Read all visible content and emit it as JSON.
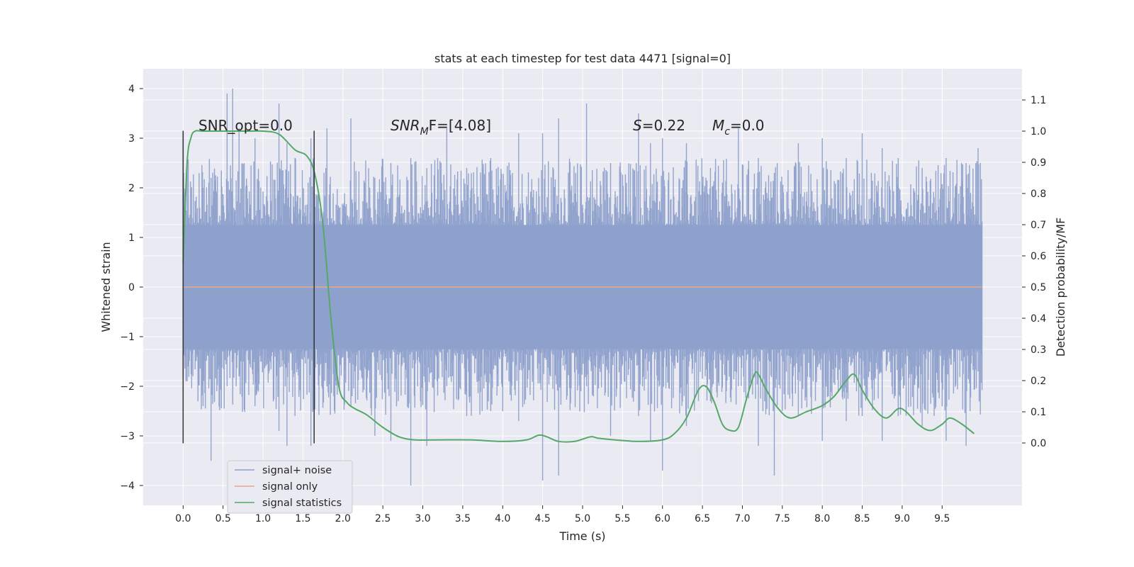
{
  "chart_data": {
    "type": "line",
    "title": "stats at each timestep for test data 4471 [signal=0]",
    "xlabel": "Time (s)",
    "ylabel_left": "Whitened strain",
    "ylabel_right": "Detection probability/MF",
    "xlim": [
      -0.5,
      10.5
    ],
    "ylim_left": [
      -4.4,
      4.4
    ],
    "ylim_right": [
      -0.2,
      1.2
    ],
    "x_ticks": [
      "0.0",
      "0.5",
      "1.0",
      "1.5",
      "2.0",
      "2.5",
      "3.0",
      "3.5",
      "4.0",
      "4.5",
      "5.0",
      "5.5",
      "6.0",
      "6.5",
      "7.0",
      "7.5",
      "8.0",
      "8.5",
      "9.0",
      "9.5"
    ],
    "y_ticks_left": [
      "4",
      "3",
      "2",
      "1",
      "0",
      "−1",
      "−2",
      "−3",
      "−4"
    ],
    "y_ticks_right": [
      "1.1",
      "1.0",
      "0.9",
      "0.8",
      "0.7",
      "0.6",
      "0.5",
      "0.4",
      "0.3",
      "0.2",
      "0.1",
      "0.0"
    ],
    "grid": true,
    "legend_position": "lower-left",
    "colors": {
      "background": "#eaeaf2",
      "noise": "#8da0cb",
      "signal_only": "#e8a88a",
      "statistics": "#55a868",
      "marker": "#333333"
    },
    "annotations": [
      {
        "text": "SNR_opt=0.0"
      },
      {
        "text_italic": "SNR",
        "sub": "M",
        "text_rest": "F=[4.08]"
      },
      {
        "text_italic": "S",
        "text_rest": "=0.22"
      },
      {
        "text_italic": "M",
        "sub": "c",
        "text_rest": "=0.0"
      }
    ],
    "markers_x": [
      0.0,
      1.64
    ],
    "series": [
      {
        "name": "signal+ noise",
        "axis": "left",
        "x_range": [
          0.0,
          10.0
        ],
        "envelope": 1.25,
        "spikes": [
          [
            0.0,
            3.1,
            -1.8
          ],
          [
            0.05,
            2.6,
            -1.9
          ],
          [
            0.25,
            2.0,
            -2.4
          ],
          [
            0.35,
            2.2,
            -3.5
          ],
          [
            0.55,
            3.9,
            -2.0
          ],
          [
            0.62,
            4.0,
            -2.3
          ],
          [
            0.7,
            3.2,
            -1.8
          ],
          [
            0.9,
            3.0,
            -2.4
          ],
          [
            1.2,
            3.7,
            -2.9
          ],
          [
            1.3,
            2.9,
            -3.2
          ],
          [
            1.4,
            2.6,
            -2.6
          ],
          [
            1.6,
            3.0,
            -3.2
          ],
          [
            1.8,
            3.2,
            -2.0
          ],
          [
            2.1,
            3.4,
            -2.4
          ],
          [
            2.4,
            2.2,
            -3.0
          ],
          [
            2.6,
            2.5,
            -3.1
          ],
          [
            2.85,
            2.6,
            -4.0
          ],
          [
            3.05,
            2.4,
            -3.2
          ],
          [
            3.3,
            3.2,
            -2.0
          ],
          [
            3.55,
            2.4,
            -2.6
          ],
          [
            3.85,
            2.6,
            -2.5
          ],
          [
            4.2,
            3.1,
            -2.7
          ],
          [
            4.5,
            3.1,
            -3.9
          ],
          [
            4.7,
            3.4,
            -3.8
          ],
          [
            5.05,
            3.7,
            -2.0
          ],
          [
            5.35,
            2.5,
            -3.0
          ],
          [
            5.7,
            3.5,
            -2.6
          ],
          [
            5.85,
            2.9,
            -3.1
          ],
          [
            6.0,
            3.0,
            -3.7
          ],
          [
            6.3,
            2.9,
            -2.8
          ],
          [
            6.6,
            2.4,
            -2.3
          ],
          [
            6.95,
            3.2,
            -2.0
          ],
          [
            7.2,
            2.6,
            -3.2
          ],
          [
            7.4,
            2.3,
            -3.8
          ],
          [
            7.7,
            2.9,
            -2.6
          ],
          [
            8.0,
            3.0,
            -3.1
          ],
          [
            8.3,
            2.6,
            -2.7
          ],
          [
            8.5,
            3.1,
            -2.6
          ],
          [
            8.75,
            2.8,
            -3.1
          ],
          [
            8.95,
            2.6,
            -2.6
          ],
          [
            9.25,
            2.4,
            -2.8
          ],
          [
            9.55,
            2.6,
            -3.1
          ],
          [
            9.8,
            2.5,
            -3.2
          ],
          [
            9.95,
            2.8,
            -1.7
          ]
        ]
      },
      {
        "name": "signal only",
        "axis": "left",
        "x": [
          0.0,
          10.0
        ],
        "y": [
          0.0,
          0.0
        ]
      },
      {
        "name": "signal statistics",
        "axis": "right",
        "x": [
          0.0,
          0.05,
          0.1,
          0.15,
          0.25,
          0.5,
          0.8,
          1.0,
          1.2,
          1.4,
          1.55,
          1.65,
          1.75,
          1.85,
          1.95,
          2.05,
          2.15,
          2.3,
          2.5,
          2.7,
          2.9,
          3.2,
          3.6,
          4.0,
          4.3,
          4.45,
          4.55,
          4.7,
          4.9,
          5.1,
          5.2,
          5.4,
          5.7,
          6.0,
          6.15,
          6.3,
          6.45,
          6.55,
          6.65,
          6.75,
          6.85,
          6.95,
          7.05,
          7.15,
          7.2,
          7.3,
          7.45,
          7.6,
          7.8,
          8.0,
          8.15,
          8.3,
          8.4,
          8.5,
          8.65,
          8.8,
          8.95,
          9.05,
          9.2,
          9.35,
          9.5,
          9.6,
          9.75,
          9.9
        ],
        "y": [
          0.58,
          0.9,
          0.98,
          1.0,
          1.0,
          1.0,
          1.0,
          1.0,
          0.99,
          0.94,
          0.92,
          0.86,
          0.7,
          0.4,
          0.18,
          0.13,
          0.11,
          0.09,
          0.05,
          0.02,
          0.01,
          0.01,
          0.01,
          0.005,
          0.01,
          0.025,
          0.02,
          0.005,
          0.005,
          0.02,
          0.015,
          0.01,
          0.005,
          0.01,
          0.03,
          0.08,
          0.17,
          0.18,
          0.13,
          0.06,
          0.04,
          0.05,
          0.14,
          0.22,
          0.22,
          0.17,
          0.11,
          0.08,
          0.1,
          0.12,
          0.15,
          0.2,
          0.22,
          0.17,
          0.11,
          0.08,
          0.11,
          0.1,
          0.06,
          0.04,
          0.06,
          0.08,
          0.06,
          0.03
        ]
      }
    ]
  }
}
